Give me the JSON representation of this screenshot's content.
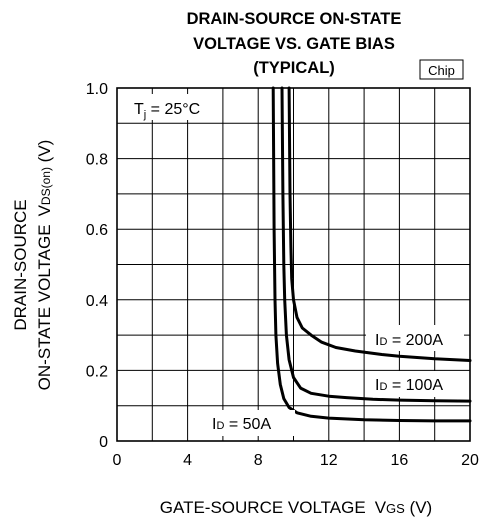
{
  "chart_data": {
    "type": "line",
    "title": [
      "DRAIN-SOURCE ON-STATE",
      "VOLTAGE VS. GATE BIAS",
      "(TYPICAL)"
    ],
    "tag": "Chip",
    "xlabel": {
      "main": "GATE-SOURCE VOLTAGE",
      "sym": "V",
      "sub": "GS",
      "unit": " (V)"
    },
    "ylabel": {
      "line1": "DRAIN-SOURCE",
      "line2": "ON-STATE VOLTAGE",
      "sym": "V",
      "sub": "DS(on)",
      "unit": " (V)"
    },
    "xlim": [
      0,
      20
    ],
    "ylim": [
      0,
      1.0
    ],
    "xticks": [
      "0",
      "4",
      "8",
      "12",
      "16",
      "20"
    ],
    "yticks": [
      "0",
      "0.2",
      "0.4",
      "0.6",
      "0.8",
      "1.0"
    ],
    "grid": true,
    "condition": {
      "sym": "T",
      "sub": "j",
      "rest": " = 25°C"
    },
    "series": [
      {
        "name": "ID = 50A",
        "label": {
          "sym": "I",
          "sub": "D",
          "rest": " = 50A"
        },
        "x": [
          8.85,
          8.9,
          8.95,
          9.0,
          9.1,
          9.25,
          9.45,
          9.75,
          10.2,
          11.0,
          12.0,
          14.0,
          16.0,
          18.0,
          20.0
        ],
        "y": [
          1.0,
          0.6,
          0.4,
          0.3,
          0.22,
          0.16,
          0.12,
          0.095,
          0.08,
          0.07,
          0.065,
          0.06,
          0.058,
          0.057,
          0.057
        ]
      },
      {
        "name": "ID = 100A",
        "label": {
          "sym": "I",
          "sub": "D",
          "rest": " = 100A"
        },
        "x": [
          9.35,
          9.4,
          9.45,
          9.5,
          9.6,
          9.75,
          10.0,
          10.4,
          11.0,
          12.0,
          13.0,
          14.5,
          16.0,
          18.0,
          20.0
        ],
        "y": [
          1.0,
          0.7,
          0.5,
          0.4,
          0.3,
          0.23,
          0.18,
          0.15,
          0.135,
          0.127,
          0.123,
          0.118,
          0.116,
          0.114,
          0.113
        ]
      },
      {
        "name": "ID = 200A",
        "label": {
          "sym": "I",
          "sub": "D",
          "rest": " = 200A"
        },
        "x": [
          9.75,
          9.8,
          9.85,
          9.9,
          10.0,
          10.2,
          10.5,
          11.0,
          11.6,
          12.4,
          13.5,
          15.0,
          16.0,
          18.0,
          20.0
        ],
        "y": [
          1.0,
          0.7,
          0.55,
          0.46,
          0.4,
          0.35,
          0.32,
          0.3,
          0.28,
          0.265,
          0.255,
          0.245,
          0.24,
          0.233,
          0.228
        ]
      }
    ]
  }
}
